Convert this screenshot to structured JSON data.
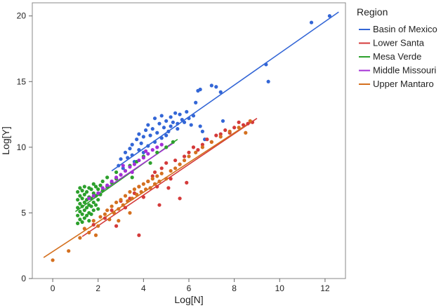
{
  "chart_data": {
    "type": "scatter",
    "xlabel": "Log[N]",
    "ylabel": "Log[Y]",
    "xlim": [
      -0.9,
      12.9
    ],
    "ylim": [
      0,
      21
    ],
    "xticks": [
      0,
      2,
      4,
      6,
      8,
      10,
      12
    ],
    "yticks": [
      0,
      5,
      10,
      15,
      20
    ],
    "grid": false,
    "legend_title": "Region",
    "legend_position": "right",
    "series": [
      {
        "name": "Basin of Mexico",
        "color": "#3366d6",
        "fit": {
          "x": [
            2.6,
            12.6
          ],
          "y": [
            8.2,
            20.3
          ]
        },
        "points": [
          [
            2.9,
            8.6
          ],
          [
            3.0,
            9.1
          ],
          [
            3.1,
            8.4
          ],
          [
            3.2,
            9.6
          ],
          [
            3.3,
            9.2
          ],
          [
            3.4,
            9.9
          ],
          [
            3.5,
            9.4
          ],
          [
            3.5,
            10.2
          ],
          [
            3.6,
            8.9
          ],
          [
            3.7,
            10.6
          ],
          [
            3.8,
            9.8
          ],
          [
            3.8,
            11.0
          ],
          [
            3.9,
            10.3
          ],
          [
            4.0,
            10.8
          ],
          [
            4.0,
            9.6
          ],
          [
            4.1,
            11.3
          ],
          [
            4.2,
            10.1
          ],
          [
            4.2,
            11.7
          ],
          [
            4.3,
            10.9
          ],
          [
            4.4,
            11.4
          ],
          [
            4.5,
            10.4
          ],
          [
            4.5,
            12.2
          ],
          [
            4.6,
            11.1
          ],
          [
            4.7,
            11.8
          ],
          [
            4.8,
            10.7
          ],
          [
            4.8,
            12.4
          ],
          [
            4.9,
            11.5
          ],
          [
            5.0,
            12.0
          ],
          [
            5.0,
            10.9
          ],
          [
            5.1,
            11.2
          ],
          [
            5.2,
            12.3
          ],
          [
            5.2,
            11.6
          ],
          [
            5.3,
            11.9
          ],
          [
            5.4,
            12.6
          ],
          [
            5.5,
            11.4
          ],
          [
            5.5,
            11.8
          ],
          [
            5.6,
            12.5
          ],
          [
            5.7,
            12.1
          ],
          [
            5.8,
            11.9
          ],
          [
            5.9,
            12.7
          ],
          [
            6.0,
            12.2
          ],
          [
            6.1,
            11.7
          ],
          [
            6.2,
            12.4
          ],
          [
            6.3,
            13.4
          ],
          [
            6.4,
            14.3
          ],
          [
            6.5,
            14.4
          ],
          [
            6.5,
            11.6
          ],
          [
            6.6,
            11.2
          ],
          [
            6.7,
            10.6
          ],
          [
            7.0,
            14.7
          ],
          [
            7.2,
            14.6
          ],
          [
            7.4,
            14.2
          ],
          [
            7.5,
            12.0
          ],
          [
            9.4,
            16.3
          ],
          [
            9.5,
            15.0
          ],
          [
            11.4,
            19.5
          ],
          [
            12.2,
            20.0
          ]
        ]
      },
      {
        "name": "Lower Santa",
        "color": "#d43a3a",
        "fit": {
          "x": [
            1.3,
            9.0
          ],
          "y": [
            3.2,
            12.2
          ]
        },
        "points": [
          [
            1.8,
            4.1
          ],
          [
            2.3,
            4.6
          ],
          [
            2.6,
            5.2
          ],
          [
            2.8,
            4.0
          ],
          [
            3.0,
            5.9
          ],
          [
            3.2,
            5.4
          ],
          [
            3.4,
            6.1
          ],
          [
            3.6,
            6.5
          ],
          [
            3.8,
            7.0
          ],
          [
            4.0,
            6.2
          ],
          [
            4.2,
            7.4
          ],
          [
            4.4,
            7.8
          ],
          [
            4.5,
            8.1
          ],
          [
            4.6,
            7.0
          ],
          [
            4.8,
            8.4
          ],
          [
            5.0,
            8.8
          ],
          [
            5.2,
            7.6
          ],
          [
            5.4,
            9.0
          ],
          [
            5.6,
            8.7
          ],
          [
            5.8,
            9.3
          ],
          [
            6.0,
            9.6
          ],
          [
            6.2,
            10.0
          ],
          [
            6.4,
            9.8
          ],
          [
            6.6,
            10.2
          ],
          [
            6.8,
            10.6
          ],
          [
            7.0,
            10.4
          ],
          [
            7.2,
            10.9
          ],
          [
            7.4,
            11.0
          ],
          [
            7.6,
            11.3
          ],
          [
            7.8,
            11.1
          ],
          [
            8.0,
            11.5
          ],
          [
            8.2,
            11.9
          ],
          [
            8.4,
            11.7
          ],
          [
            8.6,
            11.8
          ],
          [
            8.8,
            11.9
          ],
          [
            3.8,
            3.3
          ],
          [
            4.7,
            5.6
          ],
          [
            5.1,
            6.9
          ],
          [
            5.6,
            6.1
          ],
          [
            5.9,
            7.3
          ]
        ]
      },
      {
        "name": "Mesa Verde",
        "color": "#2ca02c",
        "fit": {
          "x": [
            1.0,
            5.5
          ],
          "y": [
            5.1,
            10.6
          ]
        },
        "points": [
          [
            1.1,
            4.2
          ],
          [
            1.1,
            4.8
          ],
          [
            1.1,
            5.4
          ],
          [
            1.1,
            6.0
          ],
          [
            1.1,
            6.6
          ],
          [
            1.2,
            4.5
          ],
          [
            1.2,
            5.1
          ],
          [
            1.2,
            5.7
          ],
          [
            1.2,
            6.3
          ],
          [
            1.2,
            6.9
          ],
          [
            1.3,
            4.3
          ],
          [
            1.3,
            4.9
          ],
          [
            1.3,
            5.5
          ],
          [
            1.3,
            6.1
          ],
          [
            1.3,
            6.7
          ],
          [
            1.4,
            4.6
          ],
          [
            1.4,
            5.2
          ],
          [
            1.4,
            5.8
          ],
          [
            1.4,
            6.4
          ],
          [
            1.4,
            7.0
          ],
          [
            1.5,
            4.8
          ],
          [
            1.5,
            5.4
          ],
          [
            1.5,
            6.0
          ],
          [
            1.5,
            6.6
          ],
          [
            1.6,
            4.4
          ],
          [
            1.6,
            5.0
          ],
          [
            1.6,
            5.6
          ],
          [
            1.6,
            6.2
          ],
          [
            1.6,
            6.9
          ],
          [
            1.7,
            4.9
          ],
          [
            1.7,
            5.5
          ],
          [
            1.7,
            6.1
          ],
          [
            1.7,
            6.8
          ],
          [
            1.8,
            5.2
          ],
          [
            1.8,
            5.8
          ],
          [
            1.8,
            6.5
          ],
          [
            1.8,
            7.2
          ],
          [
            1.9,
            5.6
          ],
          [
            1.9,
            6.3
          ],
          [
            1.9,
            7.0
          ],
          [
            2.0,
            5.3
          ],
          [
            2.0,
            6.0
          ],
          [
            2.0,
            6.8
          ],
          [
            2.1,
            6.4
          ],
          [
            2.1,
            7.1
          ],
          [
            2.2,
            6.7
          ],
          [
            2.2,
            7.4
          ],
          [
            2.4,
            7.0
          ],
          [
            2.4,
            7.7
          ],
          [
            2.6,
            7.3
          ],
          [
            2.8,
            7.6
          ],
          [
            2.8,
            8.1
          ],
          [
            3.0,
            7.9
          ],
          [
            3.2,
            8.2
          ],
          [
            3.4,
            8.6
          ],
          [
            3.5,
            7.7
          ],
          [
            3.7,
            8.9
          ],
          [
            4.0,
            9.3
          ],
          [
            4.3,
            8.8
          ],
          [
            4.6,
            9.6
          ],
          [
            5.0,
            10.0
          ],
          [
            5.3,
            10.4
          ]
        ]
      },
      {
        "name": "Middle Missouri",
        "color": "#a42fd6",
        "fit": {
          "x": [
            1.6,
            5.3
          ],
          "y": [
            6.0,
            10.3
          ]
        },
        "points": [
          [
            1.6,
            6.1
          ],
          [
            1.8,
            6.3
          ],
          [
            2.0,
            6.5
          ],
          [
            2.2,
            6.9
          ],
          [
            2.4,
            7.1
          ],
          [
            2.6,
            7.4
          ],
          [
            2.8,
            7.7
          ],
          [
            3.0,
            7.9
          ],
          [
            3.2,
            8.2
          ],
          [
            3.4,
            8.5
          ],
          [
            3.6,
            8.7
          ],
          [
            3.8,
            9.0
          ],
          [
            4.0,
            9.2
          ],
          [
            4.2,
            9.5
          ],
          [
            4.4,
            9.8
          ],
          [
            4.6,
            10.0
          ],
          [
            4.8,
            10.2
          ],
          [
            3.1,
            8.6
          ],
          [
            3.5,
            8.1
          ],
          [
            4.1,
            9.7
          ]
        ]
      },
      {
        "name": "Upper Mantaro",
        "color": "#d4701f",
        "fit": {
          "x": [
            -0.4,
            8.8
          ],
          "y": [
            1.6,
            12.0
          ]
        },
        "points": [
          [
            0.0,
            1.4
          ],
          [
            0.7,
            2.1
          ],
          [
            1.2,
            3.1
          ],
          [
            1.4,
            3.8
          ],
          [
            1.6,
            3.5
          ],
          [
            1.8,
            4.4
          ],
          [
            2.0,
            4.0
          ],
          [
            2.1,
            4.7
          ],
          [
            2.3,
            4.9
          ],
          [
            2.4,
            5.2
          ],
          [
            2.5,
            4.5
          ],
          [
            2.6,
            5.5
          ],
          [
            2.7,
            5.0
          ],
          [
            2.8,
            5.8
          ],
          [
            2.9,
            5.3
          ],
          [
            3.0,
            6.0
          ],
          [
            3.1,
            5.6
          ],
          [
            3.2,
            6.3
          ],
          [
            3.3,
            5.9
          ],
          [
            3.4,
            6.6
          ],
          [
            3.5,
            6.1
          ],
          [
            3.6,
            6.8
          ],
          [
            3.7,
            6.4
          ],
          [
            3.8,
            7.0
          ],
          [
            3.9,
            6.6
          ],
          [
            4.0,
            7.2
          ],
          [
            4.1,
            6.8
          ],
          [
            4.2,
            7.4
          ],
          [
            4.3,
            6.9
          ],
          [
            4.4,
            7.6
          ],
          [
            4.5,
            7.2
          ],
          [
            4.6,
            7.8
          ],
          [
            4.7,
            7.4
          ],
          [
            4.8,
            8.0
          ],
          [
            5.0,
            7.6
          ],
          [
            5.2,
            8.2
          ],
          [
            5.4,
            8.4
          ],
          [
            5.6,
            8.7
          ],
          [
            5.8,
            9.0
          ],
          [
            6.0,
            9.3
          ],
          [
            6.3,
            9.6
          ],
          [
            6.6,
            10.0
          ],
          [
            7.0,
            10.4
          ],
          [
            7.4,
            10.8
          ],
          [
            7.8,
            11.2
          ],
          [
            8.2,
            11.5
          ],
          [
            8.5,
            11.1
          ],
          [
            8.7,
            12.0
          ],
          [
            1.9,
            3.3
          ],
          [
            2.9,
            4.4
          ],
          [
            3.4,
            5.0
          ]
        ]
      }
    ]
  }
}
